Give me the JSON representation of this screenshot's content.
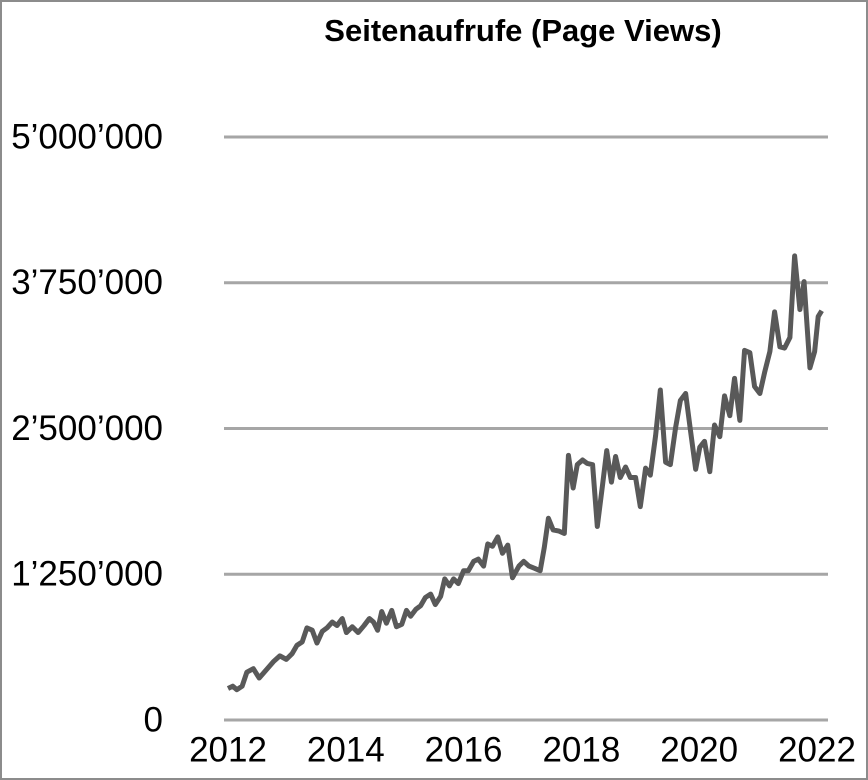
{
  "chart_data": {
    "type": "line",
    "title": "Seitenaufrufe (Page Views)",
    "x": [
      2012.0,
      2012.08,
      2012.15,
      2012.24,
      2012.32,
      2012.43,
      2012.53,
      2012.65,
      2012.77,
      2012.88,
      2012.99,
      2013.09,
      2013.17,
      2013.26,
      2013.34,
      2013.43,
      2013.51,
      2013.6,
      2013.68,
      2013.77,
      2013.85,
      2013.94,
      2014.01,
      2014.11,
      2014.21,
      2014.31,
      2014.4,
      2014.47,
      2014.54,
      2014.61,
      2014.69,
      2014.78,
      2014.86,
      2014.95,
      2015.03,
      2015.1,
      2015.19,
      2015.27,
      2015.35,
      2015.44,
      2015.52,
      2015.61,
      2015.68,
      2015.76,
      2015.83,
      2015.91,
      2016.0,
      2016.08,
      2016.17,
      2016.25,
      2016.34,
      2016.41,
      2016.49,
      2016.58,
      2016.66,
      2016.75,
      2016.83,
      2016.94,
      2017.02,
      2017.11,
      2017.21,
      2017.3,
      2017.37,
      2017.44,
      2017.52,
      2017.62,
      2017.71,
      2017.78,
      2017.86,
      2017.93,
      2018.02,
      2018.1,
      2018.19,
      2018.27,
      2018.36,
      2018.43,
      2018.51,
      2018.58,
      2018.66,
      2018.75,
      2018.83,
      2018.92,
      2019.0,
      2019.09,
      2019.17,
      2019.26,
      2019.34,
      2019.43,
      2019.51,
      2019.6,
      2019.68,
      2019.77,
      2019.85,
      2019.94,
      2020.01,
      2020.09,
      2020.18,
      2020.26,
      2020.35,
      2020.43,
      2020.52,
      2020.6,
      2020.69,
      2020.77,
      2020.86,
      2020.94,
      2021.03,
      2021.11,
      2021.2,
      2021.28,
      2021.37,
      2021.45,
      2021.54,
      2021.62,
      2021.71,
      2021.78,
      2021.88,
      2021.96,
      2022.02,
      2022.08
    ],
    "series": [
      {
        "color": "#595959",
        "values": [
          270000,
          290000,
          260000,
          290000,
          410000,
          440000,
          360000,
          430000,
          500000,
          550000,
          520000,
          570000,
          640000,
          670000,
          790000,
          770000,
          660000,
          760000,
          790000,
          840000,
          810000,
          870000,
          750000,
          800000,
          750000,
          810000,
          870000,
          840000,
          770000,
          930000,
          830000,
          940000,
          800000,
          820000,
          940000,
          890000,
          950000,
          980000,
          1050000,
          1080000,
          990000,
          1060000,
          1210000,
          1150000,
          1210000,
          1170000,
          1280000,
          1280000,
          1360000,
          1380000,
          1320000,
          1510000,
          1490000,
          1570000,
          1430000,
          1500000,
          1220000,
          1320000,
          1360000,
          1320000,
          1300000,
          1280000,
          1480000,
          1730000,
          1630000,
          1620000,
          1600000,
          2270000,
          1990000,
          2190000,
          2230000,
          2200000,
          2190000,
          1660000,
          2020000,
          2310000,
          2040000,
          2260000,
          2080000,
          2170000,
          2080000,
          2080000,
          1830000,
          2160000,
          2100000,
          2440000,
          2830000,
          2210000,
          2190000,
          2510000,
          2740000,
          2800000,
          2490000,
          2150000,
          2340000,
          2390000,
          2130000,
          2530000,
          2430000,
          2780000,
          2610000,
          2930000,
          2570000,
          3170000,
          3150000,
          2860000,
          2800000,
          2980000,
          3160000,
          3500000,
          3200000,
          3190000,
          3280000,
          3980000,
          3520000,
          3760000,
          3020000,
          3160000,
          3460000,
          3510000
        ]
      }
    ],
    "xlim": [
      2012,
      2022
    ],
    "xticks": [
      2012,
      2014,
      2016,
      2018,
      2020,
      2022
    ],
    "ylim": [
      0,
      5000000
    ],
    "yticks": [
      0,
      {
        "value": 1250000,
        "label": "1’250’000"
      },
      {
        "value": 2500000,
        "label": "2’500’000"
      },
      {
        "value": 3750000,
        "label": "3’750’000"
      },
      {
        "value": 5000000,
        "label": "5’000’000"
      }
    ],
    "grid": true
  }
}
